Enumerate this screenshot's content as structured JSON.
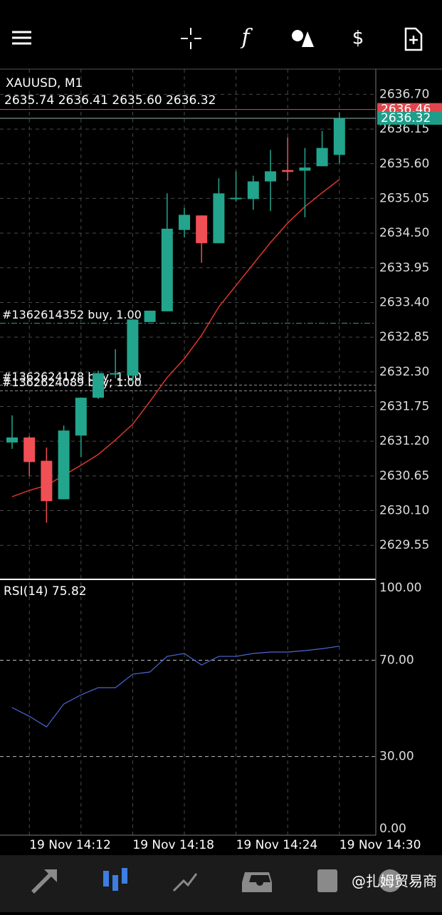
{
  "chart_data": [
    {
      "type": "candlestick",
      "title": "XAUUSD, M1",
      "subtitle": "2635.74 2636.41 2635.60 2636.32",
      "categories": [
        null,
        "19 Nov 14:12",
        null,
        null,
        null,
        null,
        null,
        "19 Nov 14:18",
        null,
        null,
        null,
        null,
        null,
        "19 Nov 14:24",
        null,
        null,
        null,
        null,
        null,
        "19 Nov 14:30"
      ],
      "open": [
        2631.18,
        2631.26,
        2630.89,
        2630.28,
        2631.29,
        2631.89,
        2632.26,
        2632.24,
        2633.09,
        2633.26,
        2634.55,
        2634.78,
        2634.34,
        2635.05,
        2635.04,
        2635.32,
        2635.5,
        2635.49,
        2635.56,
        2635.74
      ],
      "high": [
        2631.61,
        2631.28,
        2631.1,
        2631.45,
        2631.89,
        2632.32,
        2632.66,
        2633.13,
        2633.27,
        2635.13,
        2634.9,
        2634.78,
        2635.37,
        2635.48,
        2635.41,
        2635.82,
        2636.02,
        2635.85,
        2636.12,
        2636.41
      ],
      "low": [
        2631.08,
        2630.65,
        2629.91,
        2630.28,
        2630.95,
        2631.87,
        2632.2,
        2632.15,
        2633.09,
        2633.26,
        2634.43,
        2634.03,
        2634.34,
        2635.0,
        2634.87,
        2634.85,
        2635.33,
        2634.75,
        2635.56,
        2635.6
      ],
      "close": [
        2631.26,
        2630.87,
        2630.25,
        2631.37,
        2631.89,
        2632.28,
        2632.28,
        2633.13,
        2633.27,
        2634.57,
        2634.79,
        2634.34,
        2635.13,
        2635.06,
        2635.32,
        2635.48,
        2635.47,
        2635.54,
        2635.85,
        2636.32
      ],
      "up_color": "#22a58c",
      "down_color": "#ef4f55",
      "ma": {
        "color": "#d9372e",
        "values": [
          2630.32,
          2630.42,
          2630.5,
          2630.66,
          2630.82,
          2630.99,
          2631.22,
          2631.47,
          2631.83,
          2632.21,
          2632.51,
          2632.88,
          2633.33,
          2633.67,
          2634.01,
          2634.35,
          2634.66,
          2634.92,
          2635.14,
          2635.35
        ]
      },
      "ylim": [
        2629.01,
        2637.1
      ],
      "yticks": [
        {
          "value": 2636.7,
          "label": "2636.70"
        },
        2636.15,
        {
          "value": 2635.6,
          "label": "2635.60"
        },
        2635.05,
        {
          "value": 2634.5,
          "label": "2634.50"
        },
        2633.95,
        {
          "value": 2633.4,
          "label": "2633.40"
        },
        2632.85,
        {
          "value": 2632.3,
          "label": "2632.30"
        },
        2631.75,
        {
          "value": 2631.2,
          "label": "2631.20"
        },
        2630.65,
        {
          "value": 2630.1,
          "label": "2630.10"
        },
        2629.55
      ],
      "ask": 2636.46,
      "ask_color": "#e0474c",
      "bid": 2636.32,
      "bid_color": "#1e9e8a",
      "orders": [
        {
          "label": "#1362614352 buy, 1.00",
          "price": 2633.07,
          "color": "#23a58c"
        },
        {
          "label": "#1362624178 buy, 1.00",
          "price": 2632.09,
          "color": "#8a8f95"
        },
        {
          "label": "#1362624089 buy, 1.00",
          "price": 2632.0,
          "color": "#8a8f95"
        }
      ],
      "grid": true
    },
    {
      "type": "line",
      "title": "RSI(14) 75.82",
      "color": "#4b68d6",
      "values": [
        50.3,
        46.7,
        42.3,
        51.8,
        55.6,
        58.6,
        58.6,
        64.2,
        65.1,
        71.6,
        72.8,
        68.0,
        71.6,
        71.6,
        72.8,
        73.4,
        73.4,
        74.0,
        74.8,
        75.82
      ],
      "ylim": [
        -2.7,
        103.6
      ],
      "yticks": [
        {
          "value": 100,
          "label": "100.00"
        },
        {
          "value": 70,
          "label": "70.00"
        },
        {
          "value": 30,
          "label": "30.00"
        },
        {
          "value": 0,
          "label": "0.00"
        }
      ],
      "level_lines": [
        30,
        70
      ]
    }
  ],
  "watermark": "@扎姆贸易商"
}
